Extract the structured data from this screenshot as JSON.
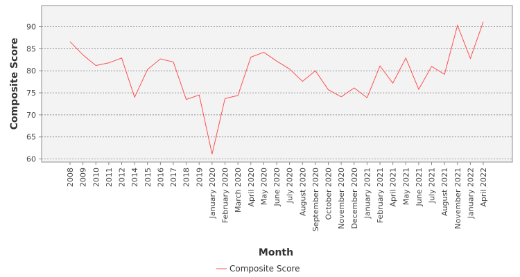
{
  "chart_data": {
    "type": "line",
    "title": "",
    "xlabel": "Month",
    "ylabel": "Composite Score",
    "ylim": [
      59.3,
      94.8
    ],
    "yticks": [
      60,
      65,
      70,
      75,
      80,
      85,
      90
    ],
    "grid": "horizontal dashed",
    "legend_position": "bottom-center",
    "colors": {
      "series": "#ff4d4d",
      "plot_bg": "#f3f3f3",
      "grid": "#6e6e6e"
    },
    "categories": [
      "2008",
      "2009",
      "2010",
      "2011",
      "2012",
      "2014",
      "2015",
      "2016",
      "2017",
      "2018",
      "2019",
      "January 2020",
      "February 2020",
      "March 2020",
      "April 2020",
      "May 2020",
      "June 2020",
      "July 2020",
      "August 2020",
      "September 2020",
      "October 2020",
      "November 2020",
      "December 2020",
      "January 2021",
      "February 2021",
      "April 2021",
      "May 2021",
      "June 2021",
      "July 2021",
      "August 2021",
      "November 2021",
      "January 2022",
      "April 2022"
    ],
    "series": [
      {
        "name": "Composite Score",
        "values": [
          86.6,
          83.6,
          81.2,
          81.8,
          82.9,
          74.0,
          80.3,
          82.7,
          82.0,
          73.5,
          74.5,
          61.1,
          73.7,
          74.4,
          83.1,
          84.2,
          82.2,
          80.4,
          77.6,
          80.0,
          75.7,
          74.1,
          76.1,
          73.9,
          81.1,
          77.2,
          82.9,
          75.8,
          81.0,
          79.2,
          90.3,
          82.8,
          91.1
        ]
      }
    ]
  }
}
